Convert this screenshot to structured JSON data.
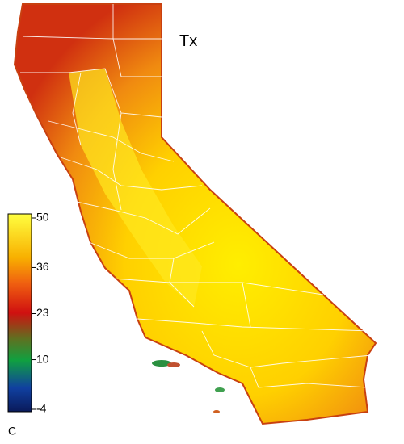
{
  "map": {
    "title": "Tx",
    "colorbar": {
      "unit": "C",
      "lim": [
        -4,
        50
      ],
      "ticks": [
        -4,
        10,
        23,
        36,
        50
      ]
    }
  }
}
